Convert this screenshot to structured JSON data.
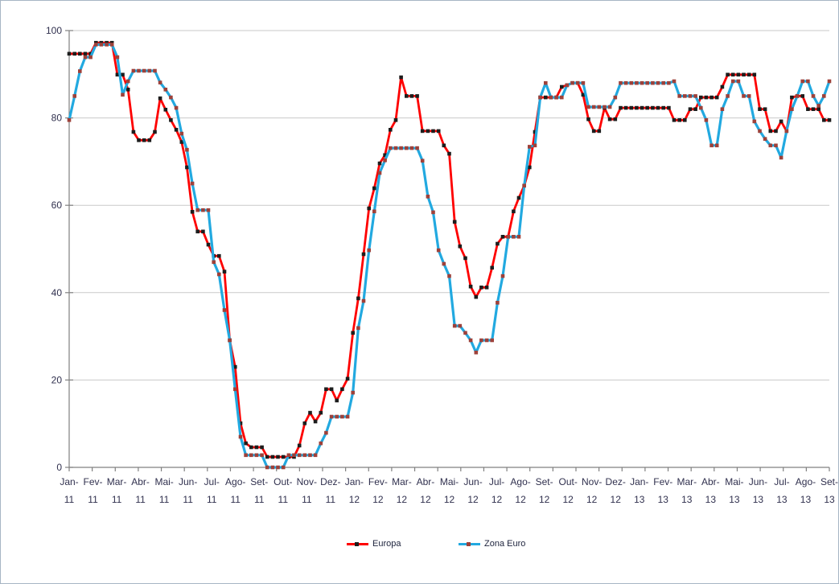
{
  "window": {
    "background": "#ffffff",
    "border_color": "#a7b6c4"
  },
  "style": {
    "grid_color": "#c9c9c9",
    "axis_color": "#808080",
    "axis_text_color": "#30304e",
    "legend_text_color": "#20263f"
  },
  "chart_data": {
    "type": "line",
    "title": "",
    "xlabel": "",
    "ylabel": "",
    "grid": true,
    "legend_position": "bottom",
    "y_axis": {
      "min": 0,
      "max": 100,
      "tick_interval": 20,
      "ticks": [
        0,
        20,
        40,
        60,
        80,
        100
      ]
    },
    "categories": [
      "Jan-11",
      "Fev-11",
      "Mar-11",
      "Abr-11",
      "Mai-11",
      "Jun-11",
      "Jul-11",
      "Ago-11",
      "Set-11",
      "Out-11",
      "Nov-11",
      "Dez-11",
      "Jan-12",
      "Fev-12",
      "Mar-12",
      "Abr-12",
      "Mai-12",
      "Jun-12",
      "Jul-12",
      "Ago-12",
      "Set-12",
      "Out-12",
      "Nov-12",
      "Dez-12",
      "Jan-13",
      "Fev-13",
      "Mar-13",
      "Abr-13",
      "Mai-13",
      "Jun-13",
      "Jul-13",
      "Ago-13",
      "Set-13"
    ],
    "points_per_month": [
      4,
      4,
      5,
      4,
      4,
      5,
      4,
      4,
      5,
      4,
      4,
      5,
      4,
      4,
      5,
      4,
      4,
      5,
      4,
      4,
      5,
      4,
      4,
      5,
      4,
      4,
      5,
      4,
      4,
      5,
      4,
      4,
      5
    ],
    "series": [
      {
        "name": "Europa",
        "line_color": "#fe0000",
        "marker_color": "#1d1d1d",
        "values": [
          94.7,
          94.7,
          94.7,
          94.7,
          94.7,
          97.2,
          97.2,
          97.2,
          97.2,
          89.9,
          89.9,
          86.5,
          76.8,
          74.9,
          74.9,
          74.9,
          76.8,
          84.5,
          81.9,
          79.5,
          77.3,
          74.5,
          68.7,
          58.5,
          54,
          54,
          51,
          48.4,
          48.4,
          44.8,
          29.1,
          23,
          10.1,
          5.5,
          4.6,
          4.6,
          4.6,
          2.4,
          2.4,
          2.4,
          2.4,
          2.4,
          2.4,
          5,
          10.1,
          12.5,
          10.5,
          12.5,
          17.9,
          17.9,
          15.3,
          17.9,
          20.3,
          30.8,
          38.7,
          48.8,
          59.3,
          63.9,
          69.6,
          71.5,
          77.3,
          79.5,
          89.3,
          85,
          85,
          85,
          77,
          77,
          77,
          77,
          73.7,
          71.8,
          56.2,
          50.6,
          47.9,
          41.4,
          39,
          41.2,
          41.2,
          45.7,
          51.2,
          52.8,
          52.8,
          58.6,
          61.7,
          64.5,
          68.7,
          76.8,
          84.7,
          84.7,
          84.7,
          84.7,
          87.1,
          87.5,
          88,
          88,
          85.3,
          79.7,
          77,
          77,
          82.3,
          79.7,
          79.7,
          82.3,
          82.3,
          82.3,
          82.3,
          82.3,
          82.3,
          82.3,
          82.3,
          82.3,
          82.3,
          79.5,
          79.5,
          79.5,
          82,
          82,
          84.7,
          84.7,
          84.7,
          84.7,
          87.1,
          89.9,
          89.9,
          89.9,
          89.9,
          89.9,
          89.9,
          82,
          82,
          77,
          77,
          79.2,
          77,
          84.7,
          85,
          85,
          82,
          82,
          82,
          79.5,
          79.5
        ]
      },
      {
        "name": "Zona Euro",
        "line_color": "#22a9e0",
        "marker_color": "#9e413a",
        "values": [
          79.5,
          85,
          90.7,
          93.9,
          93.9,
          96.8,
          96.8,
          96.8,
          96.8,
          93.9,
          85.3,
          88.4,
          90.8,
          90.8,
          90.8,
          90.8,
          90.8,
          88.1,
          86.5,
          84.7,
          82.3,
          76.4,
          72.7,
          65,
          58.9,
          58.9,
          58.9,
          47,
          44.2,
          36,
          29.1,
          17.9,
          7,
          2.8,
          2.8,
          2.8,
          2.8,
          0,
          0,
          0,
          0,
          2.8,
          2.8,
          2.8,
          2.8,
          2.8,
          2.8,
          5.5,
          7.9,
          11.6,
          11.6,
          11.6,
          11.6,
          17.1,
          31.9,
          38.1,
          49.7,
          58.6,
          67.4,
          70.3,
          73.1,
          73.1,
          73.1,
          73.1,
          73.1,
          73.1,
          70.2,
          62,
          58.4,
          49.7,
          46.6,
          43.8,
          32.4,
          32.4,
          30.8,
          29.1,
          26.3,
          29.1,
          29.1,
          29.1,
          37.7,
          43.8,
          52.8,
          52.8,
          52.8,
          64.5,
          73.4,
          73.7,
          84.7,
          88,
          84.7,
          84.7,
          84.7,
          87.5,
          88,
          88,
          88,
          82.5,
          82.5,
          82.5,
          82.5,
          82.5,
          84.7,
          88,
          88,
          88,
          88,
          88,
          88,
          88,
          88,
          88,
          88,
          88.4,
          85,
          85,
          85,
          85,
          82.3,
          79.5,
          73.7,
          73.7,
          82,
          85,
          88.4,
          88.4,
          85,
          85,
          79.2,
          77,
          75.2,
          73.7,
          73.7,
          70.9,
          77,
          82,
          85,
          88.4,
          88.4,
          85,
          82.8,
          85,
          88.4
        ]
      }
    ]
  }
}
